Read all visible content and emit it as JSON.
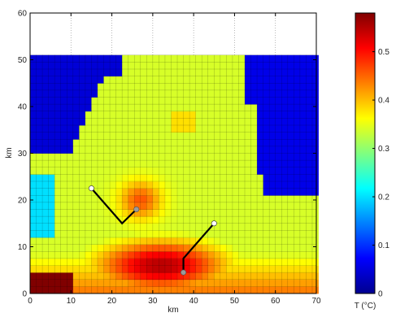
{
  "chart_data": [
    {
      "type": "heatmap",
      "xlabel": "km",
      "ylabel": "km",
      "xlim": [
        0,
        70
      ],
      "ylim": [
        0,
        60
      ],
      "x_ticks": [
        "0",
        "10",
        "20",
        "30",
        "40",
        "50",
        "60",
        "70"
      ],
      "y_ticks": [
        "0",
        "10",
        "20",
        "30",
        "40",
        "50",
        "60"
      ],
      "grid": "dotted, upper region only",
      "colormap": "jet",
      "color_range": [
        0,
        0.58
      ],
      "colorbar_label": "T (°C)",
      "colorbar_ticks": [
        "0",
        "0.1",
        "0.2",
        "0.3",
        "0.4",
        "0.5"
      ],
      "data_extent_km": {
        "x": [
          0,
          70
        ],
        "y": [
          0,
          51
        ]
      },
      "approximate_temperature_regions": [
        {
          "region": "upper-left corner",
          "x": [
            0,
            20
          ],
          "y": [
            30,
            51
          ],
          "T": 0.05
        },
        {
          "region": "right side above 25 km",
          "x": [
            55,
            70
          ],
          "y": [
            25,
            51
          ],
          "T": 0.06
        },
        {
          "region": "central plume",
          "x": [
            15,
            55
          ],
          "y": [
            25,
            50
          ],
          "T": 0.2
        },
        {
          "region": "warm spot",
          "x": [
            35,
            40
          ],
          "y": [
            35,
            39
          ],
          "T": 0.38
        },
        {
          "region": "mid band",
          "x": [
            0,
            70
          ],
          "y": [
            10,
            25
          ],
          "T": 0.3
        },
        {
          "region": "hot core",
          "x": [
            17,
            47
          ],
          "y": [
            2,
            10
          ],
          "T": 0.52
        },
        {
          "region": "lower-left corner",
          "x": [
            0,
            10
          ],
          "y": [
            0,
            4
          ],
          "T": 0.58
        }
      ],
      "traverse_lines": [
        {
          "name": "traverse-1",
          "points": [
            [
              15,
              22.5
            ],
            [
              22.5,
              15
            ],
            [
              26,
              18
            ]
          ]
        },
        {
          "name": "traverse-2",
          "points": [
            [
              45,
              15
            ],
            [
              37.5,
              7.5
            ],
            [
              37.5,
              4.5
            ]
          ]
        }
      ]
    }
  ]
}
